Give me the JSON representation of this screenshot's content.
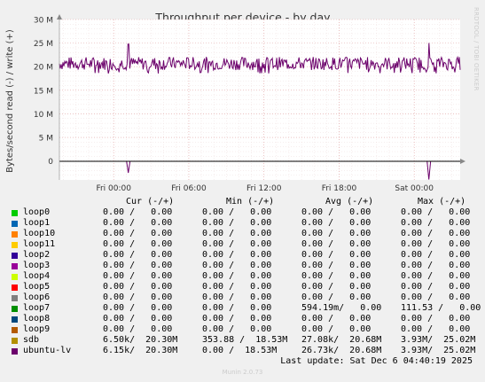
{
  "side_text": "RRDTOOL / TOBI OETIKER",
  "munin_version": "Munin 2.0.73",
  "last_update": "Last update: Sat Dec  6 04:40:19 2025",
  "legend_header": {
    "cur": "Cur (-/+)",
    "min": "Min (-/+)",
    "avg": "Avg (-/+)",
    "max": "Max (-/+)"
  },
  "legend": [
    {
      "name": "loop0",
      "color": "#00cc00",
      "cur": "0.00 /   0.00",
      "min": "0.00 /   0.00",
      "avg": "0.00 /   0.00",
      "max": "0.00 /   0.00"
    },
    {
      "name": "loop1",
      "color": "#0066b3",
      "cur": "0.00 /   0.00",
      "min": "0.00 /   0.00",
      "avg": "0.00 /   0.00",
      "max": "0.00 /   0.00"
    },
    {
      "name": "loop10",
      "color": "#ff8000",
      "cur": "0.00 /   0.00",
      "min": "0.00 /   0.00",
      "avg": "0.00 /   0.00",
      "max": "0.00 /   0.00"
    },
    {
      "name": "loop11",
      "color": "#ffcc00",
      "cur": "0.00 /   0.00",
      "min": "0.00 /   0.00",
      "avg": "0.00 /   0.00",
      "max": "0.00 /   0.00"
    },
    {
      "name": "loop2",
      "color": "#330099",
      "cur": "0.00 /   0.00",
      "min": "0.00 /   0.00",
      "avg": "0.00 /   0.00",
      "max": "0.00 /   0.00"
    },
    {
      "name": "loop3",
      "color": "#990099",
      "cur": "0.00 /   0.00",
      "min": "0.00 /   0.00",
      "avg": "0.00 /   0.00",
      "max": "0.00 /   0.00"
    },
    {
      "name": "loop4",
      "color": "#ccff00",
      "cur": "0.00 /   0.00",
      "min": "0.00 /   0.00",
      "avg": "0.00 /   0.00",
      "max": "0.00 /   0.00"
    },
    {
      "name": "loop5",
      "color": "#ff0000",
      "cur": "0.00 /   0.00",
      "min": "0.00 /   0.00",
      "avg": "0.00 /   0.00",
      "max": "0.00 /   0.00"
    },
    {
      "name": "loop6",
      "color": "#808080",
      "cur": "0.00 /   0.00",
      "min": "0.00 /   0.00",
      "avg": "0.00 /   0.00",
      "max": "0.00 /   0.00"
    },
    {
      "name": "loop7",
      "color": "#008f00",
      "cur": "0.00 /   0.00",
      "min": "0.00 /   0.00",
      "avg": "594.19m/   0.00",
      "max": "111.53 /   0.00"
    },
    {
      "name": "loop8",
      "color": "#00487d",
      "cur": "0.00 /   0.00",
      "min": "0.00 /   0.00",
      "avg": "0.00 /   0.00",
      "max": "0.00 /   0.00"
    },
    {
      "name": "loop9",
      "color": "#b35a00",
      "cur": "0.00 /   0.00",
      "min": "0.00 /   0.00",
      "avg": "0.00 /   0.00",
      "max": "0.00 /   0.00"
    },
    {
      "name": "sdb",
      "color": "#b38f00",
      "cur": "6.50k/  20.30M",
      "min": "353.88 /  18.53M",
      "avg": "27.08k/  20.68M",
      "max": "3.93M/  25.02M"
    },
    {
      "name": "ubuntu-lv",
      "color": "#6b006b",
      "cur": "6.15k/  20.30M",
      "min": "0.00 /  18.53M",
      "avg": "26.73k/  20.68M",
      "max": "3.93M/  25.02M"
    }
  ],
  "chart_data": {
    "type": "line",
    "title": "Throughput per device - by day",
    "ylabel": "Bytes/second read (-) / write (+)",
    "ylim": [
      -4000000,
      30000000
    ],
    "yticks": [
      0,
      5000000,
      10000000,
      15000000,
      20000000,
      25000000,
      30000000
    ],
    "yticklabels": [
      "0",
      "5 M",
      "10 M",
      "15 M",
      "20 M",
      "25 M",
      "30 M"
    ],
    "xlim": [
      "Thu 20:40",
      "Sat 04:40"
    ],
    "xticks": [
      4.333,
      10.333,
      16.333,
      22.333,
      28.333
    ],
    "xticklabels": [
      "Fri 00:00",
      "Fri 06:00",
      "Fri 12:00",
      "Fri 18:00",
      "Sat 00:00"
    ],
    "grid": true,
    "series": [
      {
        "name": "ubuntu-lv",
        "color": "#6b006b",
        "write_level": 20680000,
        "write_min": 18530000,
        "write_max": 25020000,
        "read_spikes": [
          {
            "x": 5.5,
            "value": -2500000
          },
          {
            "x": 29.5,
            "value": -3930000
          }
        ]
      }
    ]
  }
}
